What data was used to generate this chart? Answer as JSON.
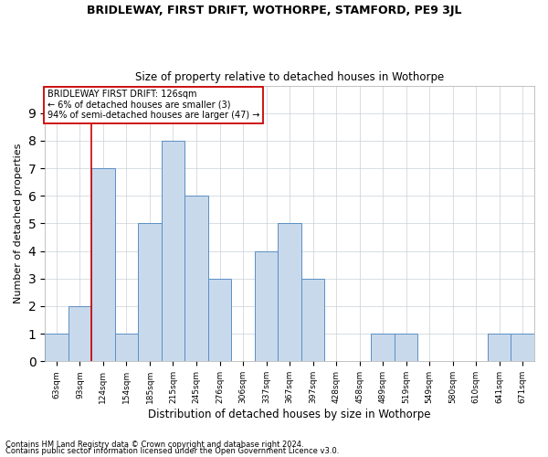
{
  "title1": "BRIDLEWAY, FIRST DRIFT, WOTHORPE, STAMFORD, PE9 3JL",
  "title2": "Size of property relative to detached houses in Wothorpe",
  "xlabel": "Distribution of detached houses by size in Wothorpe",
  "ylabel": "Number of detached properties",
  "categories": [
    "63sqm",
    "93sqm",
    "124sqm",
    "154sqm",
    "185sqm",
    "215sqm",
    "245sqm",
    "276sqm",
    "306sqm",
    "337sqm",
    "367sqm",
    "397sqm",
    "428sqm",
    "458sqm",
    "489sqm",
    "519sqm",
    "549sqm",
    "580sqm",
    "610sqm",
    "641sqm",
    "671sqm"
  ],
  "values": [
    1,
    2,
    7,
    1,
    5,
    8,
    6,
    3,
    0,
    4,
    5,
    3,
    0,
    0,
    1,
    1,
    0,
    0,
    0,
    1,
    1
  ],
  "bar_color": "#c9d9ec",
  "bar_edge_color": "#5a8fc2",
  "vline_x_index": 2,
  "vline_color": "#cc0000",
  "annotation_lines": [
    "BRIDLEWAY FIRST DRIFT: 126sqm",
    "← 6% of detached houses are smaller (3)",
    "94% of semi-detached houses are larger (47) →"
  ],
  "annotation_box_color": "#cc0000",
  "ylim": [
    0,
    10
  ],
  "yticks": [
    0,
    1,
    2,
    3,
    4,
    5,
    6,
    7,
    8,
    9
  ],
  "footer1": "Contains HM Land Registry data © Crown copyright and database right 2024.",
  "footer2": "Contains public sector information licensed under the Open Government Licence v3.0.",
  "bg_color": "#ffffff",
  "grid_color": "#c8d0d8"
}
